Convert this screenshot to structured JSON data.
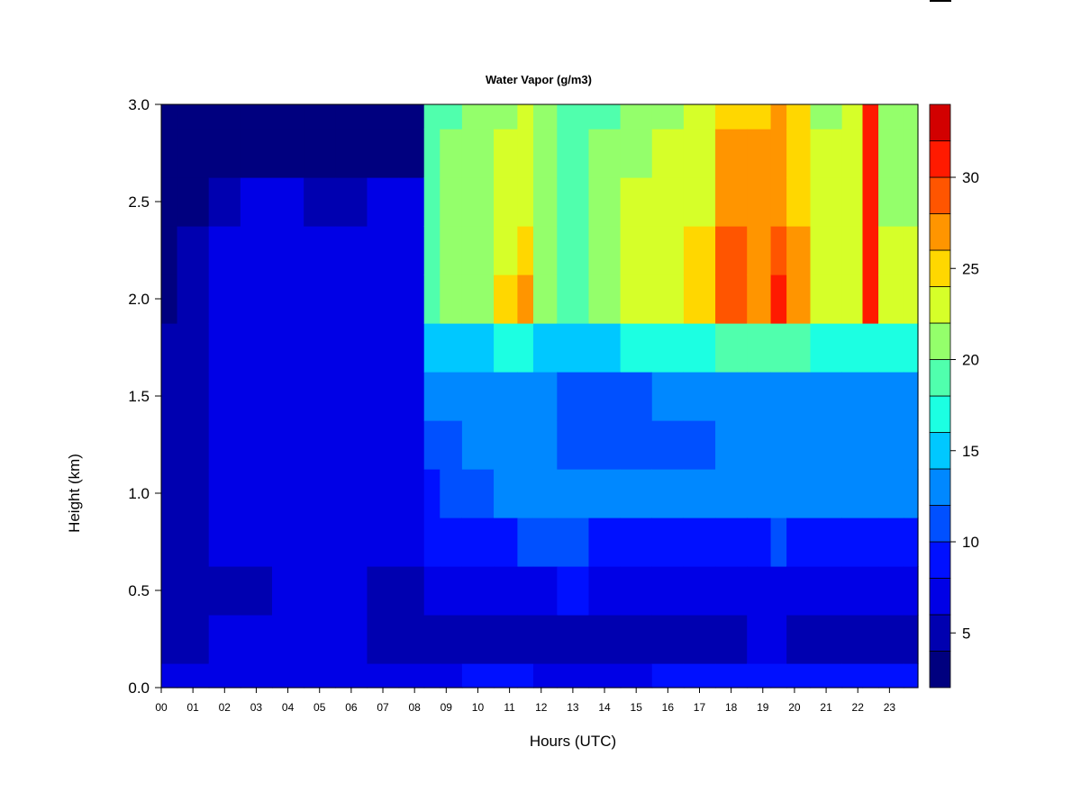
{
  "chart_data": {
    "type": "heatmap",
    "title": "Water Vapor (g/m3)",
    "xlabel": "Hours (UTC)",
    "ylabel": "Height (km)",
    "x_tick_labels": [
      "00",
      "01",
      "02",
      "03",
      "04",
      "05",
      "06",
      "07",
      "08",
      "09",
      "10",
      "11",
      "12",
      "13",
      "14",
      "15",
      "16",
      "17",
      "18",
      "19",
      "20",
      "21",
      "22",
      "23"
    ],
    "y_tick_labels": [
      "0.0",
      "0.5",
      "1.0",
      "1.5",
      "2.0",
      "2.5",
      "3.0"
    ],
    "xlim": [
      0,
      23.9
    ],
    "ylim": [
      0.0,
      3.0
    ],
    "grid": false,
    "colorbar": {
      "range": [
        2,
        34
      ],
      "tick_labels": [
        "5",
        "10",
        "15",
        "20",
        "25",
        "30"
      ],
      "levels": [
        2,
        4,
        6,
        8,
        10,
        12,
        14,
        16,
        18,
        20,
        22,
        24,
        26,
        28,
        30,
        32,
        34
      ],
      "colors": [
        "#00007F",
        "#0000B0",
        "#0000E6",
        "#0010FF",
        "#0050FF",
        "#0088FF",
        "#00C8FF",
        "#1CFFE2",
        "#50FFAD",
        "#94FF6B",
        "#D6FF29",
        "#FFD700",
        "#FF9500",
        "#FF5500",
        "#FF1A00",
        "#D20000",
        "#8C0000"
      ]
    },
    "height_levels_km": [
      0.0,
      0.25,
      0.5,
      0.75,
      1.0,
      1.25,
      1.5,
      1.75,
      2.0,
      2.25,
      2.5,
      2.75,
      3.0
    ],
    "hours_utc": [
      0.0,
      1.0,
      2.0,
      3.0,
      4.0,
      5.0,
      6.0,
      7.0,
      8.0,
      8.6,
      9.0,
      10.0,
      11.0,
      11.5,
      12.0,
      13.0,
      14.0,
      15.0,
      16.0,
      17.0,
      18.0,
      19.0,
      19.5,
      20.0,
      21.0,
      22.0,
      22.3,
      23.0,
      23.9
    ],
    "series": [
      {
        "hour": 0.0,
        "values": [
          6.5,
          5.5,
          5.0,
          5.0,
          4.5,
          4.5,
          4.0,
          4.0,
          3.8,
          3.8,
          3.6,
          3.5,
          3.5
        ]
      },
      {
        "hour": 1.0,
        "values": [
          6.5,
          5.5,
          5.0,
          5.0,
          5.0,
          4.5,
          4.5,
          4.5,
          4.0,
          4.0,
          3.8,
          3.5,
          3.5
        ]
      },
      {
        "hour": 2.0,
        "values": [
          6.5,
          6.0,
          5.5,
          6.0,
          6.0,
          6.0,
          6.0,
          6.0,
          6.0,
          6.0,
          5.5,
          3.5,
          3.5
        ]
      },
      {
        "hour": 3.0,
        "values": [
          6.5,
          6.0,
          5.5,
          6.5,
          6.5,
          6.5,
          6.5,
          6.5,
          6.5,
          6.5,
          6.0,
          3.5,
          3.5
        ]
      },
      {
        "hour": 4.0,
        "values": [
          6.5,
          6.0,
          6.5,
          6.5,
          6.5,
          6.5,
          6.5,
          6.5,
          6.5,
          6.5,
          6.0,
          3.5,
          3.5
        ]
      },
      {
        "hour": 5.0,
        "values": [
          6.5,
          6.0,
          6.5,
          6.5,
          6.5,
          6.5,
          6.5,
          6.5,
          6.5,
          6.5,
          5.5,
          3.5,
          3.5
        ]
      },
      {
        "hour": 6.0,
        "values": [
          6.5,
          6.0,
          6.5,
          6.5,
          6.5,
          6.5,
          6.5,
          6.5,
          6.5,
          6.5,
          5.5,
          3.5,
          3.5
        ]
      },
      {
        "hour": 7.0,
        "values": [
          6.5,
          5.5,
          5.5,
          6.5,
          6.5,
          6.5,
          6.5,
          6.5,
          6.5,
          6.5,
          6.0,
          3.5,
          3.5
        ]
      },
      {
        "hour": 8.0,
        "values": [
          6.5,
          5.5,
          5.5,
          6.0,
          6.5,
          6.5,
          6.5,
          6.5,
          6.5,
          6.5,
          6.0,
          3.5,
          3.5
        ]
      },
      {
        "hour": 8.6,
        "values": [
          7.0,
          5.5,
          6.5,
          8.5,
          9.5,
          11.0,
          12.5,
          15.0,
          19.0,
          19.5,
          19.0,
          18.5,
          18.0
        ]
      },
      {
        "hour": 9.0,
        "values": [
          7.0,
          5.5,
          7.0,
          8.5,
          10.0,
          11.0,
          12.5,
          15.0,
          20.0,
          21.0,
          20.5,
          20.0,
          19.5
        ]
      },
      {
        "hour": 10.0,
        "values": [
          9.0,
          5.5,
          7.5,
          8.5,
          11.0,
          12.0,
          12.5,
          15.0,
          21.0,
          21.5,
          21.5,
          21.0,
          20.5
        ]
      },
      {
        "hour": 11.0,
        "values": [
          9.0,
          5.5,
          7.5,
          9.0,
          12.0,
          12.5,
          12.5,
          16.0,
          24.0,
          23.5,
          22.5,
          22.0,
          21.5
        ]
      },
      {
        "hour": 11.5,
        "values": [
          9.0,
          5.5,
          7.5,
          10.0,
          12.5,
          12.5,
          13.0,
          17.0,
          27.5,
          25.5,
          23.5,
          22.5,
          22.0
        ]
      },
      {
        "hour": 12.0,
        "values": [
          7.0,
          5.5,
          7.5,
          11.0,
          12.5,
          12.5,
          12.5,
          15.5,
          21.0,
          21.5,
          21.0,
          20.5,
          20.0
        ]
      },
      {
        "hour": 13.0,
        "values": [
          7.0,
          5.5,
          8.5,
          11.5,
          12.5,
          11.5,
          11.5,
          15.0,
          19.5,
          19.5,
          19.0,
          18.5,
          18.0
        ]
      },
      {
        "hour": 14.0,
        "values": [
          7.0,
          5.5,
          7.5,
          9.5,
          12.5,
          11.5,
          11.5,
          15.5,
          20.5,
          21.0,
          20.5,
          20.0,
          19.5
        ]
      },
      {
        "hour": 15.0,
        "values": [
          7.0,
          5.5,
          7.5,
          9.5,
          12.5,
          11.5,
          11.5,
          16.0,
          22.0,
          22.5,
          22.0,
          21.5,
          21.0
        ]
      },
      {
        "hour": 16.0,
        "values": [
          9.0,
          5.5,
          7.5,
          9.5,
          12.5,
          11.5,
          12.0,
          16.0,
          22.5,
          23.0,
          22.5,
          22.0,
          21.5
        ]
      },
      {
        "hour": 17.0,
        "values": [
          9.0,
          5.5,
          7.5,
          9.5,
          12.5,
          11.5,
          12.0,
          17.0,
          25.0,
          24.5,
          23.5,
          23.0,
          22.5
        ]
      },
      {
        "hour": 18.0,
        "values": [
          9.0,
          5.5,
          7.5,
          9.0,
          12.5,
          12.0,
          12.5,
          18.0,
          28.0,
          28.5,
          27.0,
          26.0,
          25.0
        ]
      },
      {
        "hour": 19.0,
        "values": [
          9.0,
          6.0,
          7.5,
          9.5,
          12.5,
          12.0,
          12.5,
          18.0,
          27.0,
          27.0,
          26.5,
          26.0,
          25.5
        ]
      },
      {
        "hour": 19.5,
        "values": [
          9.5,
          6.0,
          7.5,
          10.5,
          13.0,
          13.0,
          13.5,
          19.0,
          30.5,
          29.5,
          27.5,
          26.5,
          26.0
        ]
      },
      {
        "hour": 20.0,
        "values": [
          9.0,
          5.5,
          7.5,
          9.5,
          12.5,
          12.0,
          12.5,
          18.0,
          26.0,
          26.0,
          25.5,
          25.0,
          24.5
        ]
      },
      {
        "hour": 21.0,
        "values": [
          9.0,
          5.5,
          7.5,
          9.5,
          12.5,
          12.0,
          12.0,
          17.0,
          23.0,
          23.0,
          22.5,
          22.0,
          21.5
        ]
      },
      {
        "hour": 22.0,
        "values": [
          9.0,
          5.5,
          7.5,
          9.5,
          12.5,
          12.0,
          12.0,
          17.0,
          22.5,
          23.0,
          23.0,
          22.5,
          22.0
        ]
      },
      {
        "hour": 22.3,
        "values": [
          9.0,
          5.5,
          7.5,
          9.5,
          12.5,
          12.0,
          12.5,
          17.5,
          30.5,
          30.5,
          31.0,
          31.0,
          30.5
        ]
      },
      {
        "hour": 23.0,
        "values": [
          9.0,
          5.5,
          7.5,
          9.5,
          12.5,
          12.0,
          12.0,
          17.0,
          22.0,
          22.0,
          21.5,
          21.0,
          20.5
        ]
      },
      {
        "hour": 23.9,
        "values": [
          9.0,
          5.5,
          7.5,
          9.5,
          12.5,
          12.0,
          12.0,
          17.0,
          22.0,
          22.0,
          21.5,
          21.0,
          20.5
        ]
      }
    ]
  }
}
